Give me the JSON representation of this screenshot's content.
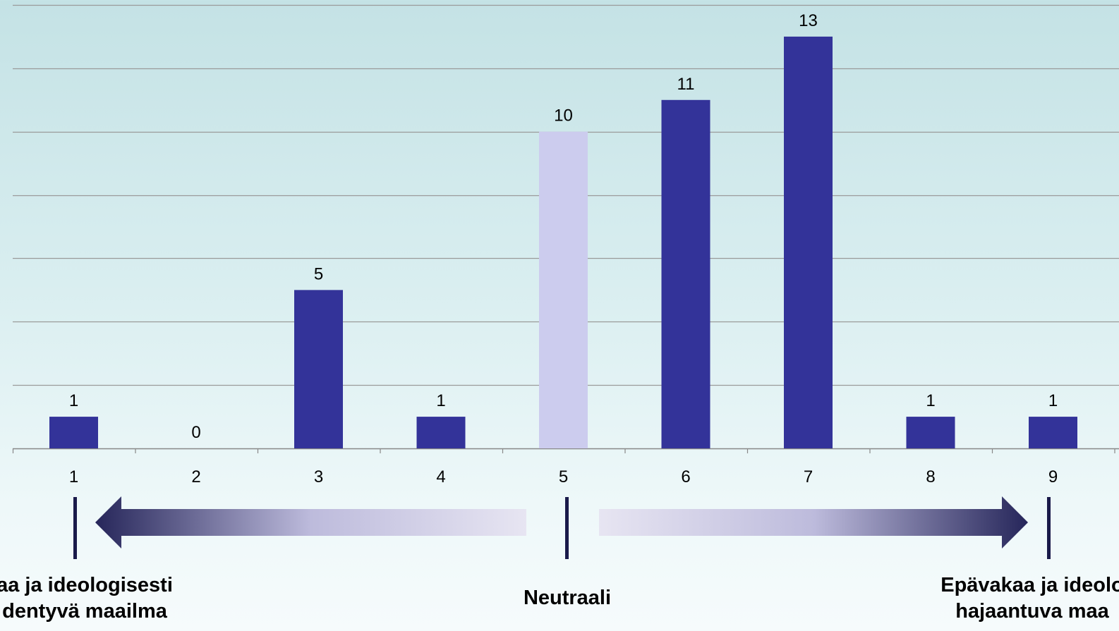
{
  "chart_data": {
    "type": "bar",
    "categories": [
      "1",
      "2",
      "3",
      "4",
      "5",
      "6",
      "7",
      "8",
      "9"
    ],
    "values": [
      1,
      0,
      5,
      1,
      10,
      11,
      13,
      1,
      1
    ],
    "highlight_index": 4,
    "ylim": [
      0,
      14
    ],
    "y_gridlines": [
      0,
      2,
      4,
      6,
      8,
      10,
      12,
      14
    ],
    "grid": true,
    "colors": {
      "bar": "#333399",
      "highlight_bar": "#ccccee",
      "gridline": "#9a9a9a",
      "axis": "#888888",
      "arrow_dark": "#2a2a60",
      "arrow_light": "#e6e4f2",
      "marker": "#1a1a4a"
    }
  },
  "scale": {
    "left_label": [
      "aa ja ideologisesti",
      "dentyvä maailma"
    ],
    "middle_label": "Neutraali",
    "right_label": [
      "Epävakaa ja ideolo",
      "hajaantuva maa"
    ]
  }
}
